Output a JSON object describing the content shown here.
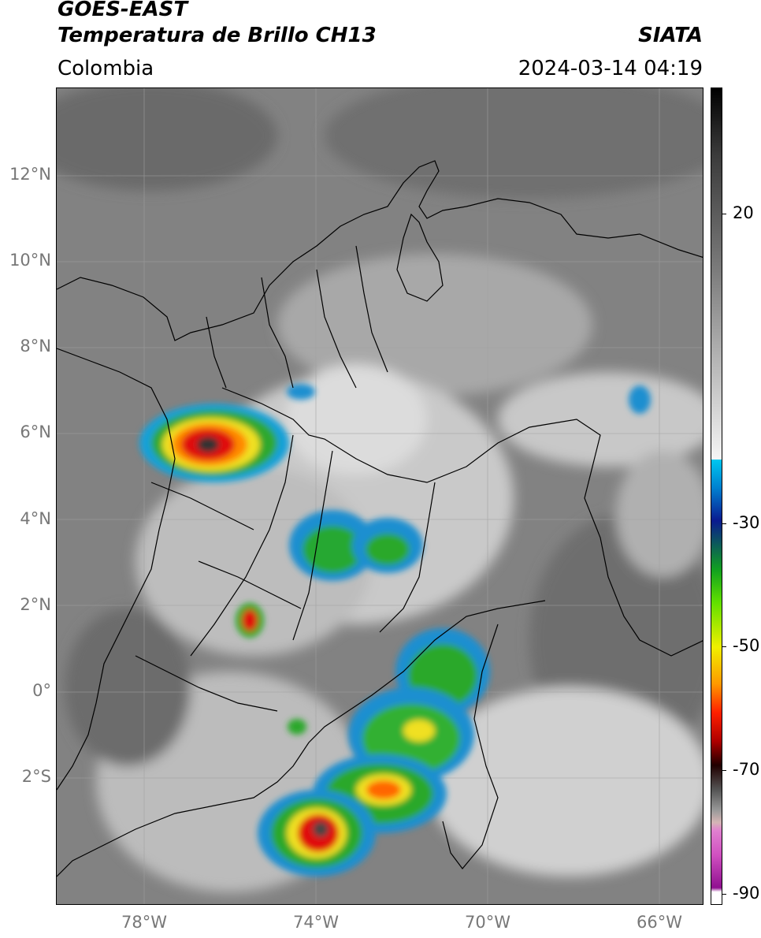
{
  "header": {
    "satellite": "GOES-EAST",
    "product": "Temperatura de Brillo CH13",
    "region": "Colombia",
    "agency": "SIATA",
    "datetime": "2024-03-14 04:19"
  },
  "map": {
    "lon_range": [
      -80,
      -65
    ],
    "lat_range": [
      -5,
      14
    ],
    "lat_ticks": [
      "12°N",
      "10°N",
      "8°N",
      "6°N",
      "4°N",
      "2°N",
      "0°",
      "2°S"
    ],
    "lon_ticks": [
      "78°W",
      "74°W",
      "70°W",
      "66°W"
    ]
  },
  "colorbar": {
    "ticks": [
      "20",
      "-30",
      "-50",
      "-70",
      "-90"
    ]
  }
}
